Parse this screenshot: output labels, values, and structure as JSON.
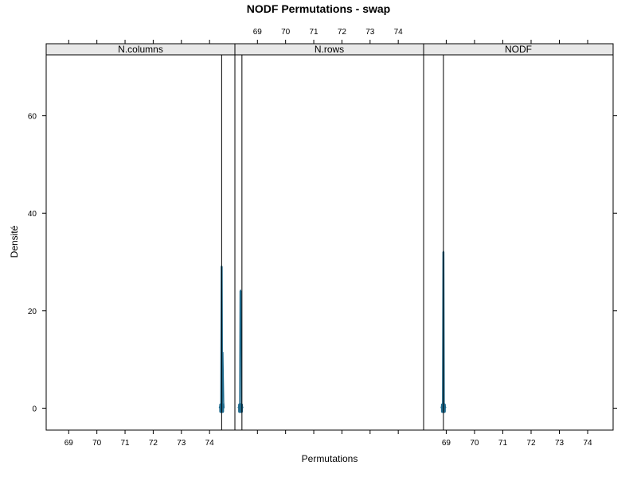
{
  "chart_data": {
    "type": "density",
    "title": "NODF Permutations - swap",
    "xlabel": "Permutations",
    "ylabel": "Densité",
    "xlim": [
      68.2,
      74.9
    ],
    "ylim": [
      -4.5,
      72.5
    ],
    "x_ticks": [
      69,
      70,
      71,
      72,
      73,
      74
    ],
    "y_ticks": [
      0,
      20,
      40,
      60
    ],
    "line_color": "#000000",
    "density_color": "#1f6b8e",
    "panels": [
      {
        "name": "N.columns",
        "observed": 74.43,
        "peak_x": 74.43,
        "peak_y": 29,
        "secondary_peak_y": 11.5,
        "bottom_ticks": true,
        "top_ticks": false
      },
      {
        "name": "N.rows",
        "observed": 68.45,
        "peak_x": 68.4,
        "peak_y": 24,
        "secondary_peak_y": 0,
        "bottom_ticks": false,
        "top_ticks": true
      },
      {
        "name": "NODF",
        "observed": 68.9,
        "peak_x": 68.9,
        "peak_y": 32,
        "secondary_peak_y": 0,
        "bottom_ticks": true,
        "top_ticks": false
      }
    ]
  }
}
